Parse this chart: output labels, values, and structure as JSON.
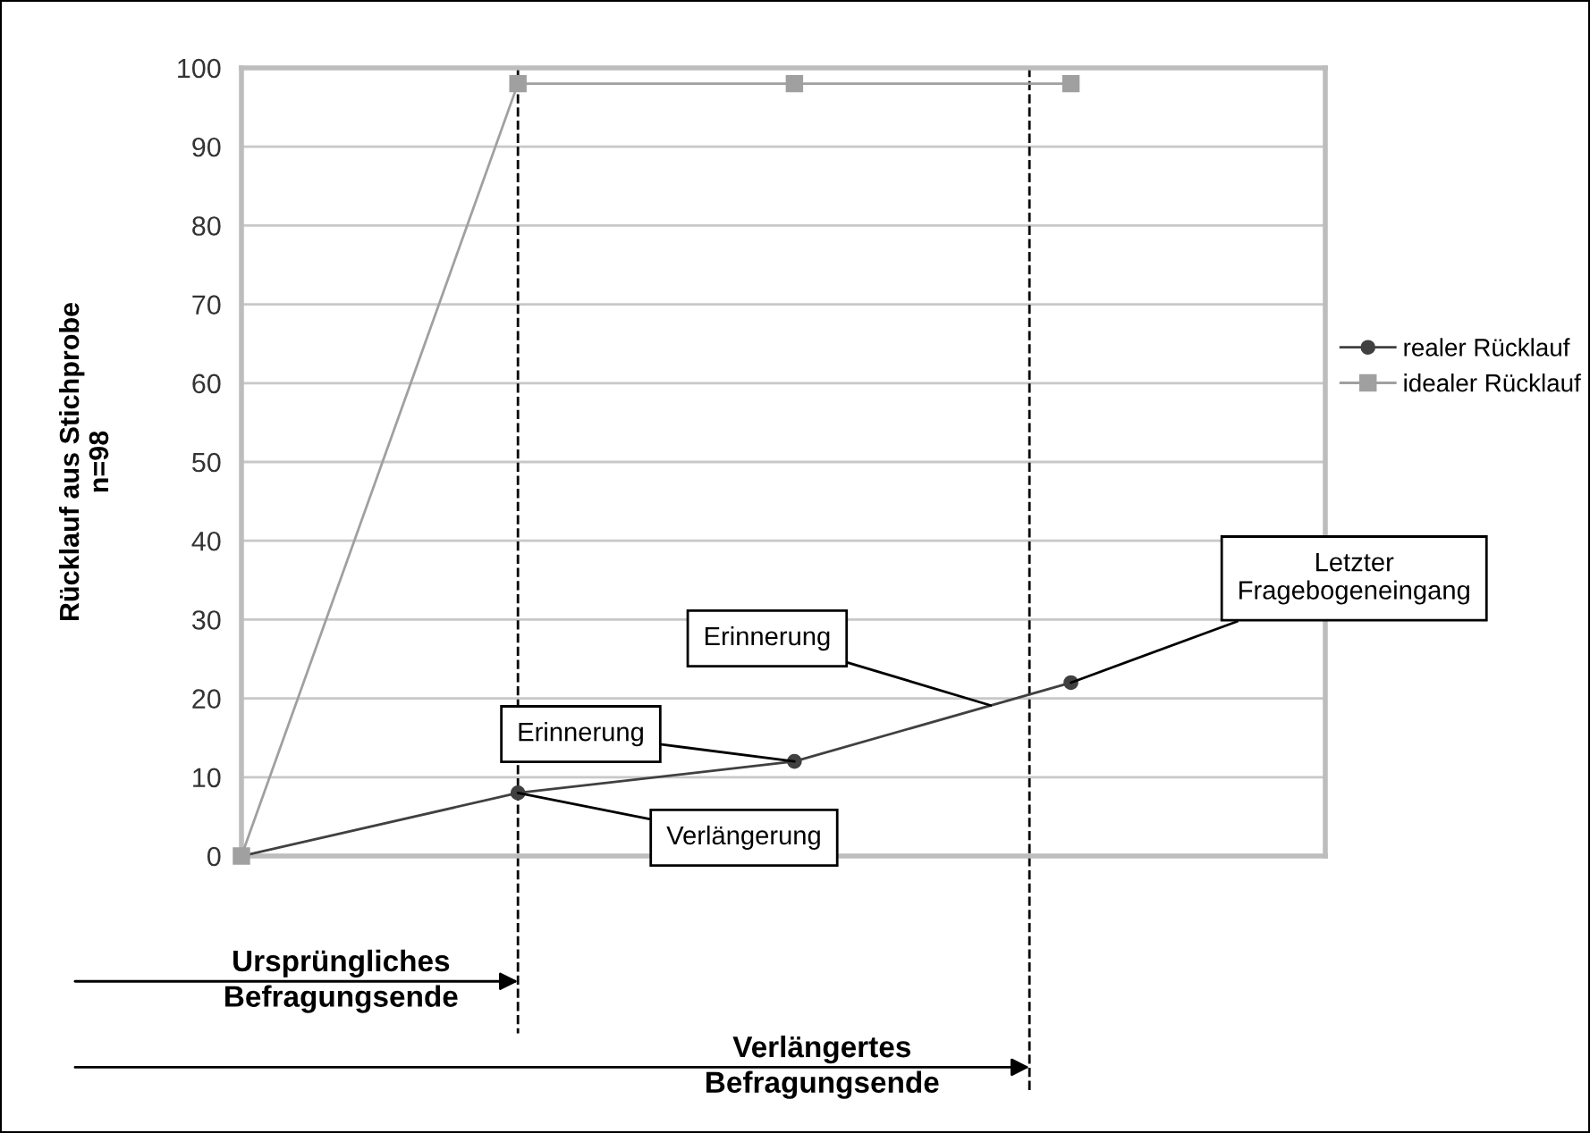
{
  "chart_data": {
    "type": "line",
    "ylabel": "Rücklauf aus Stichprobe\nn=98",
    "categories": [
      null,
      null,
      null,
      null
    ],
    "ylim": [
      0,
      100
    ],
    "yticks": [
      0,
      10,
      20,
      30,
      40,
      50,
      60,
      70,
      80,
      90,
      100
    ],
    "grid": "y",
    "legend": "right",
    "series": [
      {
        "name": "realer Rücklauf",
        "color": "#404040",
        "marker": "circle",
        "values": [
          0,
          8,
          12,
          22
        ]
      },
      {
        "name": "idealer Rücklauf",
        "color": "#a0a0a0",
        "marker": "square",
        "values": [
          0,
          98,
          98,
          98
        ]
      }
    ],
    "annotations": [
      "Ursprüngliches\nBefragungsende",
      "Verlängertes\nBefragungsende",
      "Verlängerung",
      "Erinnerung",
      "Erinnerung",
      "Letzter\nFragebogeneingang"
    ]
  }
}
